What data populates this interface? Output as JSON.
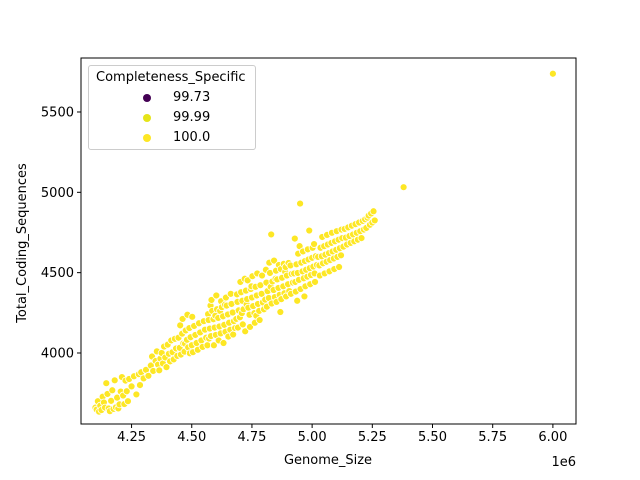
{
  "figure": {
    "background": "#ffffff"
  },
  "chart_data": {
    "type": "scatter",
    "title": "",
    "xlabel": "Genome_Size",
    "ylabel": "Total_Coding_Sequences",
    "x_offset_text": "1e6",
    "x_unit_multiplier": 1000000,
    "xlim": [
      4.04,
      6.096
    ],
    "ylim": [
      3558,
      5836
    ],
    "grid": false,
    "xticks": {
      "values": [
        4.25,
        4.5,
        4.75,
        5.0,
        5.25,
        5.5,
        5.75,
        6.0
      ],
      "labels": [
        "4.25",
        "4.50",
        "4.75",
        "5.00",
        "5.25",
        "5.50",
        "5.75",
        "6.00"
      ]
    },
    "yticks": {
      "values": [
        4000,
        4500,
        5000,
        5500
      ],
      "labels": [
        "4000",
        "4500",
        "5000",
        "5500"
      ]
    },
    "legend": {
      "title": "Completeness_Specific",
      "position": "upper left",
      "entries": [
        {
          "label": "99.73",
          "color": "#440154"
        },
        {
          "label": "99.99",
          "color": "#e5e419"
        },
        {
          "label": "100.0",
          "color": "#fde725"
        }
      ]
    },
    "point_style": {
      "fill": "#fde725",
      "edge": "#ffffff",
      "radius": 3.5
    },
    "points": [
      [
        4.1,
        3660
      ],
      [
        4.105,
        3648
      ],
      [
        4.11,
        3700
      ],
      [
        4.115,
        3635
      ],
      [
        4.12,
        3672
      ],
      [
        4.125,
        3645
      ],
      [
        4.13,
        3728
      ],
      [
        4.135,
        3692
      ],
      [
        4.14,
        3660
      ],
      [
        4.145,
        3812
      ],
      [
        4.15,
        3745
      ],
      [
        4.155,
        3655
      ],
      [
        4.16,
        3638
      ],
      [
        4.165,
        3702
      ],
      [
        4.17,
        3768
      ],
      [
        4.175,
        3652
      ],
      [
        4.18,
        3830
      ],
      [
        4.185,
        3662
      ],
      [
        4.19,
        3722
      ],
      [
        4.195,
        3655
      ],
      [
        4.2,
        3680
      ],
      [
        4.205,
        3760
      ],
      [
        4.21,
        3850
      ],
      [
        4.215,
        3735
      ],
      [
        4.22,
        3682
      ],
      [
        4.225,
        3828
      ],
      [
        4.23,
        3762
      ],
      [
        4.235,
        3700
      ],
      [
        4.24,
        3838
      ],
      [
        4.25,
        3792
      ],
      [
        4.26,
        3855
      ],
      [
        4.27,
        3742
      ],
      [
        4.28,
        3868
      ],
      [
        4.285,
        3800
      ],
      [
        4.29,
        3880
      ],
      [
        4.3,
        3842
      ],
      [
        4.31,
        3895
      ],
      [
        4.32,
        3858
      ],
      [
        4.33,
        3922
      ],
      [
        4.335,
        3978
      ],
      [
        4.34,
        3888
      ],
      [
        4.35,
        3950
      ],
      [
        4.355,
        4010
      ],
      [
        4.36,
        3928
      ],
      [
        4.365,
        3892
      ],
      [
        4.37,
        3965
      ],
      [
        4.375,
        4000
      ],
      [
        4.38,
        3935
      ],
      [
        4.385,
        4040
      ],
      [
        4.39,
        3972
      ],
      [
        4.395,
        3912
      ],
      [
        4.4,
        4052
      ],
      [
        4.405,
        3995
      ],
      [
        4.41,
        3948
      ],
      [
        4.415,
        4078
      ],
      [
        4.42,
        4005
      ],
      [
        4.425,
        3960
      ],
      [
        4.43,
        4088
      ],
      [
        4.435,
        4028
      ],
      [
        4.44,
        3982
      ],
      [
        4.445,
        4095
      ],
      [
        4.45,
        4032
      ],
      [
        4.452,
        4172
      ],
      [
        4.455,
        3990
      ],
      [
        4.46,
        4120
      ],
      [
        4.462,
        4212
      ],
      [
        4.465,
        4060
      ],
      [
        4.47,
        4008
      ],
      [
        4.472,
        4058
      ],
      [
        4.475,
        4140
      ],
      [
        4.48,
        4082
      ],
      [
        4.482,
        4238
      ],
      [
        4.485,
        4035
      ],
      [
        4.49,
        4155
      ],
      [
        4.492,
        3998
      ],
      [
        4.495,
        4098
      ],
      [
        4.5,
        4048
      ],
      [
        4.502,
        4225
      ],
      [
        4.505,
        4005
      ],
      [
        4.51,
        4168
      ],
      [
        4.515,
        4112
      ],
      [
        4.52,
        4062
      ],
      [
        4.525,
        4020
      ],
      [
        4.53,
        4185
      ],
      [
        4.535,
        4128
      ],
      [
        4.54,
        4078
      ],
      [
        4.545,
        4038
      ],
      [
        4.55,
        4198
      ],
      [
        4.555,
        4145
      ],
      [
        4.56,
        4095
      ],
      [
        4.565,
        4048
      ],
      [
        4.568,
        4242
      ],
      [
        4.57,
        4205
      ],
      [
        4.572,
        4090
      ],
      [
        4.575,
        4152
      ],
      [
        4.578,
        4295
      ],
      [
        4.58,
        4105
      ],
      [
        4.582,
        4330
      ],
      [
        4.585,
        4262
      ],
      [
        4.59,
        4210
      ],
      [
        4.592,
        4048
      ],
      [
        4.595,
        4158
      ],
      [
        4.598,
        4232
      ],
      [
        4.6,
        4112
      ],
      [
        4.602,
        4358
      ],
      [
        4.605,
        4272
      ],
      [
        4.61,
        4218
      ],
      [
        4.612,
        4078
      ],
      [
        4.615,
        4165
      ],
      [
        4.618,
        4262
      ],
      [
        4.62,
        4122
      ],
      [
        4.622,
        4322
      ],
      [
        4.625,
        4285
      ],
      [
        4.63,
        4228
      ],
      [
        4.632,
        4062
      ],
      [
        4.635,
        4175
      ],
      [
        4.638,
        4300
      ],
      [
        4.64,
        4132
      ],
      [
        4.642,
        4345
      ],
      [
        4.645,
        4295
      ],
      [
        4.65,
        4240
      ],
      [
        4.652,
        4102
      ],
      [
        4.655,
        4188
      ],
      [
        4.66,
        4145
      ],
      [
        4.662,
        4368
      ],
      [
        4.665,
        4305
      ],
      [
        4.67,
        4252
      ],
      [
        4.672,
        4115
      ],
      [
        4.675,
        4198
      ],
      [
        4.68,
        4155
      ],
      [
        4.685,
        4212
      ],
      [
        4.688,
        4365
      ],
      [
        4.69,
        4318
      ],
      [
        4.692,
        4158
      ],
      [
        4.695,
        4265
      ],
      [
        4.7,
        4222
      ],
      [
        4.702,
        4442
      ],
      [
        4.705,
        4378
      ],
      [
        4.708,
        4248
      ],
      [
        4.71,
        4325
      ],
      [
        4.712,
        4178
      ],
      [
        4.715,
        4272
      ],
      [
        4.72,
        4462
      ],
      [
        4.722,
        4135
      ],
      [
        4.725,
        4388
      ],
      [
        4.728,
        4302
      ],
      [
        4.73,
        4335
      ],
      [
        4.732,
        4452
      ],
      [
        4.735,
        4282
      ],
      [
        4.74,
        4238
      ],
      [
        4.742,
        4162
      ],
      [
        4.745,
        4398
      ],
      [
        4.748,
        4415
      ],
      [
        4.75,
        4345
      ],
      [
        4.752,
        4478
      ],
      [
        4.755,
        4292
      ],
      [
        4.76,
        4248
      ],
      [
        4.762,
        4188
      ],
      [
        4.765,
        4412
      ],
      [
        4.768,
        4232
      ],
      [
        4.77,
        4358
      ],
      [
        4.772,
        4495
      ],
      [
        4.775,
        4305
      ],
      [
        4.78,
        4262
      ],
      [
        4.782,
        4205
      ],
      [
        4.785,
        4422
      ],
      [
        4.79,
        4368
      ],
      [
        4.792,
        4482
      ],
      [
        4.795,
        4315
      ],
      [
        4.8,
        4272
      ],
      [
        4.805,
        4332
      ],
      [
        4.808,
        4518
      ],
      [
        4.81,
        4438
      ],
      [
        4.812,
        4288
      ],
      [
        4.815,
        4385
      ],
      [
        4.82,
        4342
      ],
      [
        4.822,
        4562
      ],
      [
        4.825,
        4498
      ],
      [
        4.828,
        4412
      ],
      [
        4.83,
        4738
      ],
      [
        4.832,
        4308
      ],
      [
        4.835,
        4445
      ],
      [
        4.84,
        4392
      ],
      [
        4.842,
        4575
      ],
      [
        4.845,
        4348
      ],
      [
        4.848,
        4462
      ],
      [
        4.85,
        4512
      ],
      [
        4.852,
        4318
      ],
      [
        4.855,
        4458
      ],
      [
        4.86,
        4405
      ],
      [
        4.862,
        4548
      ],
      [
        4.865,
        4362
      ],
      [
        4.868,
        4255
      ],
      [
        4.87,
        4522
      ],
      [
        4.872,
        4335
      ],
      [
        4.875,
        4468
      ],
      [
        4.88,
        4415
      ],
      [
        4.882,
        4555
      ],
      [
        4.885,
        4372
      ],
      [
        4.888,
        4505
      ],
      [
        4.89,
        4535
      ],
      [
        4.892,
        4352
      ],
      [
        4.895,
        4482
      ],
      [
        4.9,
        4428
      ],
      [
        4.902,
        4560
      ],
      [
        4.905,
        4385
      ],
      [
        4.91,
        4545
      ],
      [
        4.912,
        4368
      ],
      [
        4.915,
        4492
      ],
      [
        4.92,
        4438
      ],
      [
        4.925,
        4495
      ],
      [
        4.928,
        4712
      ],
      [
        4.93,
        4442
      ],
      [
        4.932,
        4382
      ],
      [
        4.935,
        4552
      ],
      [
        4.938,
        4325
      ],
      [
        4.94,
        4498
      ],
      [
        4.942,
        4618
      ],
      [
        4.945,
        4455
      ],
      [
        4.948,
        4665
      ],
      [
        4.95,
        4930
      ],
      [
        4.952,
        4398
      ],
      [
        4.955,
        4562
      ],
      [
        4.96,
        4508
      ],
      [
        4.962,
        4632
      ],
      [
        4.965,
        4465
      ],
      [
        4.968,
        4352
      ],
      [
        4.97,
        4572
      ],
      [
        4.972,
        4415
      ],
      [
        4.975,
        4518
      ],
      [
        4.98,
        4475
      ],
      [
        4.982,
        4645
      ],
      [
        4.985,
        4582
      ],
      [
        4.988,
        4762
      ],
      [
        4.99,
        4528
      ],
      [
        4.992,
        4428
      ],
      [
        4.995,
        4485
      ],
      [
        5.0,
        4592
      ],
      [
        5.002,
        4655
      ],
      [
        5.005,
        4538
      ],
      [
        5.008,
        4678
      ],
      [
        5.01,
        4495
      ],
      [
        5.012,
        4442
      ],
      [
        5.015,
        4602
      ],
      [
        5.02,
        4548
      ],
      [
        5.025,
        4598
      ],
      [
        5.03,
        4545
      ],
      [
        5.032,
        4482
      ],
      [
        5.035,
        4655
      ],
      [
        5.04,
        4602
      ],
      [
        5.042,
        4722
      ],
      [
        5.045,
        4558
      ],
      [
        5.05,
        4665
      ],
      [
        5.052,
        4495
      ],
      [
        5.055,
        4612
      ],
      [
        5.06,
        4568
      ],
      [
        5.062,
        4735
      ],
      [
        5.065,
        4675
      ],
      [
        5.07,
        4622
      ],
      [
        5.072,
        4508
      ],
      [
        5.075,
        4578
      ],
      [
        5.08,
        4685
      ],
      [
        5.082,
        4748
      ],
      [
        5.085,
        4632
      ],
      [
        5.09,
        4588
      ],
      [
        5.092,
        4522
      ],
      [
        5.095,
        4695
      ],
      [
        5.1,
        4642
      ],
      [
        5.102,
        4758
      ],
      [
        5.105,
        4598
      ],
      [
        5.11,
        4705
      ],
      [
        5.112,
        4535
      ],
      [
        5.115,
        4652
      ],
      [
        5.12,
        4608
      ],
      [
        5.122,
        4768
      ],
      [
        5.125,
        4715
      ],
      [
        5.13,
        4662
      ],
      [
        5.135,
        4772
      ],
      [
        5.14,
        4718
      ],
      [
        5.145,
        4675
      ],
      [
        5.15,
        4782
      ],
      [
        5.155,
        4728
      ],
      [
        5.16,
        4685
      ],
      [
        5.165,
        4792
      ],
      [
        5.17,
        4738
      ],
      [
        5.175,
        4695
      ],
      [
        5.18,
        4802
      ],
      [
        5.185,
        4748
      ],
      [
        5.19,
        4705
      ],
      [
        5.195,
        4812
      ],
      [
        5.2,
        4758
      ],
      [
        5.205,
        4715
      ],
      [
        5.21,
        4822
      ],
      [
        5.215,
        4768
      ],
      [
        5.22,
        4832
      ],
      [
        5.225,
        4778
      ],
      [
        5.23,
        4842
      ],
      [
        5.235,
        4855
      ],
      [
        5.24,
        4798
      ],
      [
        5.245,
        4868
      ],
      [
        5.25,
        4812
      ],
      [
        5.255,
        4882
      ],
      [
        5.26,
        4825
      ],
      [
        5.38,
        5032
      ],
      [
        6.0,
        5738
      ]
    ]
  }
}
